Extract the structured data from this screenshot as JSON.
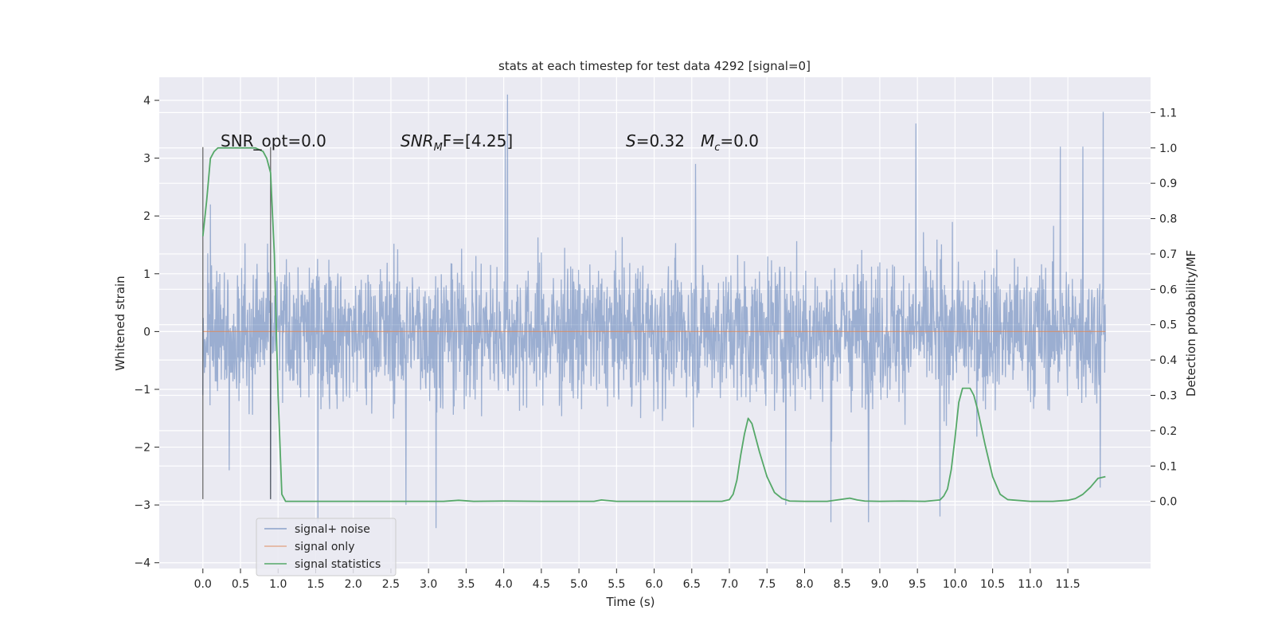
{
  "chart_data": {
    "type": "line",
    "title": "stats at each timestep for test data 4292 [signal=0]",
    "xlabel": "Time (s)",
    "ylabel": "Whitened strain",
    "ylabel_right": "Detection probability/MF",
    "xlim": [
      -0.58,
      12.6
    ],
    "ylim": [
      -4.1,
      4.4
    ],
    "ylim_right": [
      -0.19,
      1.2
    ],
    "x_ticks": [
      "0.0",
      "0.5",
      "1.0",
      "1.5",
      "2.0",
      "2.5",
      "3.0",
      "3.5",
      "4.0",
      "4.5",
      "5.0",
      "5.5",
      "6.0",
      "6.5",
      "7.0",
      "7.5",
      "8.0",
      "8.5",
      "9.0",
      "9.5",
      "10.0",
      "10.5",
      "11.0",
      "11.5"
    ],
    "y_ticks": [
      "4",
      "3",
      "2",
      "1",
      "0",
      "−1",
      "−2",
      "−3",
      "−4"
    ],
    "y_ticks_right": [
      "1.1",
      "1.0",
      "0.9",
      "0.8",
      "0.7",
      "0.6",
      "0.5",
      "0.4",
      "0.3",
      "0.2",
      "0.1",
      "0.0"
    ],
    "grid": true,
    "legend_position": "lower-left",
    "annotations": {
      "snr_opt": "SNR_opt=0.0",
      "snr_mf_main": "SNR",
      "snr_mf_sub": "M",
      "snr_mf_rest": "F=[4.25]",
      "s_main": "S",
      "s_rest": "=0.32",
      "mc_main": "M",
      "mc_sub": "c",
      "mc_rest": "=0.0"
    },
    "series": [
      {
        "name": "signal+ noise",
        "color": "#4c72b0",
        "x_range": [
          0.0,
          12.0
        ],
        "envelope_peaks": [
          {
            "x": 0.1,
            "y": 2.2
          },
          {
            "x": 0.35,
            "y": -2.4
          },
          {
            "x": 0.9,
            "y": -2.9
          },
          {
            "x": 1.53,
            "y": -3.3
          },
          {
            "x": 2.7,
            "y": -3.0
          },
          {
            "x": 3.1,
            "y": -3.4
          },
          {
            "x": 4.05,
            "y": 4.1
          },
          {
            "x": 4.02,
            "y": 3.3
          },
          {
            "x": 6.55,
            "y": 2.9
          },
          {
            "x": 7.75,
            "y": -3.0
          },
          {
            "x": 8.35,
            "y": -3.3
          },
          {
            "x": 8.85,
            "y": -3.3
          },
          {
            "x": 9.48,
            "y": 3.6
          },
          {
            "x": 9.8,
            "y": -3.2
          },
          {
            "x": 11.4,
            "y": 3.2
          },
          {
            "x": 11.7,
            "y": 3.2
          },
          {
            "x": 11.93,
            "y": -2.7
          },
          {
            "x": 11.97,
            "y": 3.8
          }
        ]
      },
      {
        "name": "signal only",
        "color": "#dd8452",
        "x": [
          0.0,
          12.0
        ],
        "y": [
          0.0,
          0.0
        ]
      },
      {
        "name": "signal statistics",
        "color": "#55a868",
        "axis": "right",
        "x": [
          0.0,
          0.05,
          0.1,
          0.15,
          0.2,
          0.3,
          0.4,
          0.5,
          0.6,
          0.7,
          0.8,
          0.85,
          0.9,
          0.95,
          1.0,
          1.05,
          1.1,
          1.5,
          2.0,
          2.5,
          3.0,
          3.2,
          3.4,
          3.6,
          4.0,
          4.5,
          5.0,
          5.2,
          5.3,
          5.5,
          6.0,
          6.5,
          6.9,
          7.0,
          7.05,
          7.1,
          7.15,
          7.2,
          7.25,
          7.3,
          7.35,
          7.4,
          7.5,
          7.6,
          7.7,
          7.8,
          8.0,
          8.3,
          8.5,
          8.6,
          8.7,
          8.8,
          9.0,
          9.3,
          9.6,
          9.8,
          9.85,
          9.9,
          9.95,
          10.0,
          10.05,
          10.1,
          10.15,
          10.2,
          10.25,
          10.3,
          10.4,
          10.5,
          10.6,
          10.7,
          11.0,
          11.3,
          11.5,
          11.6,
          11.7,
          11.8,
          11.9,
          12.0
        ],
        "y": [
          0.75,
          0.85,
          0.97,
          0.99,
          1.0,
          1.0,
          1.0,
          1.0,
          1.0,
          1.0,
          0.99,
          0.97,
          0.93,
          0.7,
          0.3,
          0.02,
          0.0,
          0.0,
          0.0,
          0.0,
          0.0,
          0.0,
          0.003,
          0.0,
          0.001,
          0.0,
          0.0,
          0.0,
          0.004,
          0.0,
          0.0,
          0.0,
          0.0,
          0.005,
          0.02,
          0.06,
          0.13,
          0.19,
          0.235,
          0.22,
          0.18,
          0.14,
          0.07,
          0.025,
          0.008,
          0.001,
          0.0,
          0.0,
          0.006,
          0.009,
          0.004,
          0.001,
          0.0,
          0.001,
          0.0,
          0.004,
          0.015,
          0.035,
          0.09,
          0.18,
          0.28,
          0.32,
          0.32,
          0.32,
          0.3,
          0.26,
          0.16,
          0.07,
          0.02,
          0.005,
          0.0,
          0.0,
          0.003,
          0.008,
          0.02,
          0.04,
          0.065,
          0.07
        ]
      }
    ],
    "vertical_markers": [
      0.0,
      0.9
    ]
  }
}
